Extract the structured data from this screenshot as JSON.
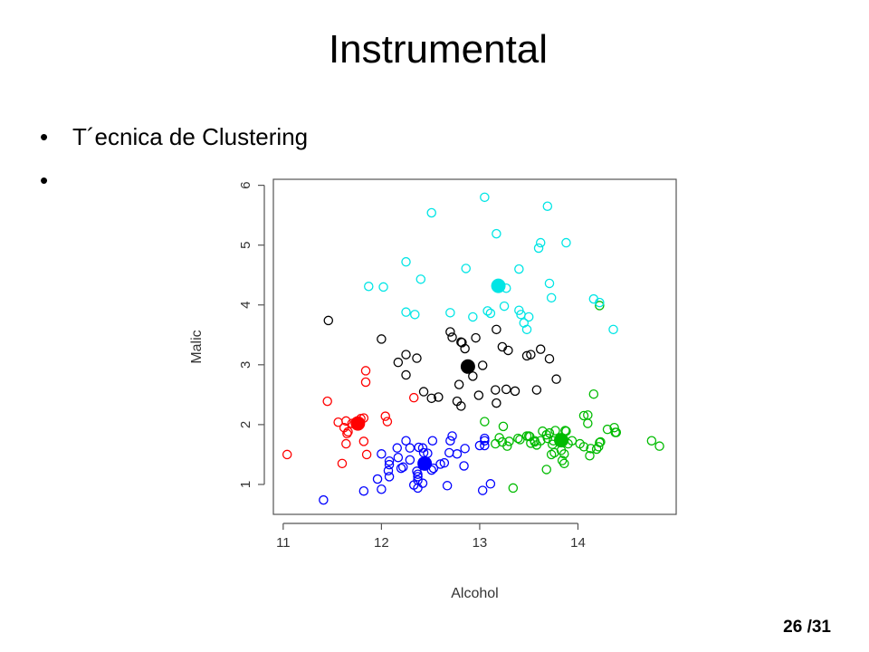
{
  "slide": {
    "title": "Instrumental",
    "bullets": [
      "T´ecnica de Clustering",
      ""
    ],
    "page": "26 /31"
  },
  "chart_data": {
    "type": "scatter",
    "title": "",
    "xlabel": "Alcohol",
    "ylabel": "Malic",
    "xlim": [
      10.9,
      15.0
    ],
    "ylim": [
      0.5,
      6.1
    ],
    "xticks": [
      11,
      12,
      13,
      14
    ],
    "yticks": [
      1,
      2,
      3,
      4,
      5,
      6
    ],
    "grid": false,
    "legend": "none",
    "series": [
      {
        "color": "#ff0000",
        "centroid": [
          11.76,
          2.02
        ],
        "points": [
          [
            11.04,
            1.5
          ],
          [
            11.45,
            2.39
          ],
          [
            11.56,
            2.04
          ],
          [
            11.6,
            1.35
          ],
          [
            11.62,
            1.95
          ],
          [
            11.64,
            1.68
          ],
          [
            11.64,
            2.06
          ],
          [
            11.65,
            1.85
          ],
          [
            11.7,
            2.02
          ],
          [
            11.82,
            2.11
          ],
          [
            11.82,
            1.72
          ],
          [
            11.84,
            2.9
          ],
          [
            11.84,
            2.71
          ],
          [
            11.85,
            1.5
          ],
          [
            12.04,
            2.14
          ],
          [
            12.06,
            2.05
          ],
          [
            12.33,
            2.45
          ],
          [
            11.79,
            2.1
          ],
          [
            11.66,
            1.88
          ]
        ]
      },
      {
        "color": "#0000ff",
        "centroid": [
          12.44,
          1.35
        ],
        "points": [
          [
            11.41,
            0.74
          ],
          [
            11.82,
            0.89
          ],
          [
            11.96,
            1.09
          ],
          [
            12.0,
            0.92
          ],
          [
            12.0,
            1.51
          ],
          [
            12.07,
            1.23
          ],
          [
            12.08,
            1.13
          ],
          [
            12.08,
            1.39
          ],
          [
            12.08,
            1.33
          ],
          [
            12.16,
            1.61
          ],
          [
            12.17,
            1.45
          ],
          [
            12.2,
            1.27
          ],
          [
            12.22,
            1.29
          ],
          [
            12.25,
            1.73
          ],
          [
            12.29,
            1.41
          ],
          [
            12.29,
            1.61
          ],
          [
            12.33,
            0.99
          ],
          [
            12.37,
            0.94
          ],
          [
            12.37,
            1.13
          ],
          [
            12.37,
            1.17
          ],
          [
            12.37,
            1.07
          ],
          [
            12.38,
            1.62
          ],
          [
            12.42,
            1.61
          ],
          [
            12.43,
            1.53
          ],
          [
            12.47,
            1.52
          ],
          [
            12.51,
            1.24
          ],
          [
            12.52,
            1.73
          ],
          [
            12.6,
            1.34
          ],
          [
            12.64,
            1.36
          ],
          [
            12.67,
            0.98
          ],
          [
            12.69,
            1.53
          ],
          [
            12.7,
            1.73
          ],
          [
            12.72,
            1.81
          ],
          [
            12.84,
            1.31
          ],
          [
            12.85,
            1.6
          ],
          [
            13.03,
            0.9
          ],
          [
            13.05,
            1.73
          ],
          [
            13.05,
            1.65
          ],
          [
            13.05,
            1.77
          ],
          [
            13.11,
            1.01
          ],
          [
            12.53,
            1.27
          ],
          [
            13.0,
            1.65
          ],
          [
            12.77,
            1.51
          ],
          [
            12.42,
            1.02
          ],
          [
            12.36,
            1.22
          ]
        ]
      },
      {
        "color": "#00bb00",
        "centroid": [
          13.83,
          1.74
        ],
        "points": [
          [
            13.05,
            2.05
          ],
          [
            13.16,
            1.68
          ],
          [
            13.2,
            1.78
          ],
          [
            13.23,
            1.71
          ],
          [
            13.28,
            1.64
          ],
          [
            13.3,
            1.72
          ],
          [
            13.34,
            0.94
          ],
          [
            13.39,
            1.77
          ],
          [
            13.41,
            1.75
          ],
          [
            13.48,
            1.81
          ],
          [
            13.5,
            1.81
          ],
          [
            13.51,
            1.8
          ],
          [
            13.56,
            1.73
          ],
          [
            13.58,
            1.66
          ],
          [
            13.62,
            1.73
          ],
          [
            13.64,
            1.89
          ],
          [
            13.68,
            1.83
          ],
          [
            13.68,
            1.25
          ],
          [
            13.71,
            1.86
          ],
          [
            13.73,
            1.5
          ],
          [
            13.74,
            1.67
          ],
          [
            13.75,
            1.73
          ],
          [
            13.76,
            1.53
          ],
          [
            13.77,
            1.9
          ],
          [
            13.82,
            1.75
          ],
          [
            13.83,
            1.57
          ],
          [
            13.84,
            1.4
          ],
          [
            13.86,
            1.35
          ],
          [
            13.86,
            1.51
          ],
          [
            13.87,
            1.9
          ],
          [
            13.88,
            1.89
          ],
          [
            13.9,
            1.68
          ],
          [
            13.94,
            1.73
          ],
          [
            14.02,
            1.68
          ],
          [
            14.06,
            1.63
          ],
          [
            14.06,
            2.15
          ],
          [
            14.1,
            2.16
          ],
          [
            14.1,
            2.02
          ],
          [
            14.12,
            1.48
          ],
          [
            14.13,
            1.6
          ],
          [
            14.16,
            2.51
          ],
          [
            14.19,
            1.59
          ],
          [
            14.21,
            1.63
          ],
          [
            14.22,
            1.7
          ],
          [
            14.22,
            3.99
          ],
          [
            14.23,
            1.71
          ],
          [
            14.3,
            1.92
          ],
          [
            14.37,
            1.95
          ],
          [
            14.38,
            1.87
          ],
          [
            14.39,
            1.87
          ],
          [
            14.83,
            1.64
          ],
          [
            14.75,
            1.73
          ],
          [
            13.24,
            1.97
          ],
          [
            13.52,
            1.69
          ],
          [
            13.56,
            1.71
          ],
          [
            13.69,
            1.77
          ]
        ]
      },
      {
        "color": "#000000",
        "centroid": [
          12.88,
          2.97
        ],
        "points": [
          [
            11.46,
            3.74
          ],
          [
            12.0,
            3.43
          ],
          [
            12.17,
            3.04
          ],
          [
            12.25,
            2.83
          ],
          [
            12.25,
            3.17
          ],
          [
            12.36,
            3.11
          ],
          [
            12.51,
            2.44
          ],
          [
            12.58,
            2.46
          ],
          [
            12.7,
            3.55
          ],
          [
            12.72,
            3.46
          ],
          [
            12.79,
            2.67
          ],
          [
            12.81,
            2.31
          ],
          [
            12.81,
            3.38
          ],
          [
            12.82,
            3.37
          ],
          [
            12.85,
            3.27
          ],
          [
            12.87,
            2.98
          ],
          [
            12.93,
            2.81
          ],
          [
            12.96,
            3.45
          ],
          [
            13.03,
            2.99
          ],
          [
            13.16,
            2.58
          ],
          [
            13.17,
            2.36
          ],
          [
            13.17,
            3.59
          ],
          [
            13.23,
            3.3
          ],
          [
            13.27,
            2.59
          ],
          [
            13.29,
            3.24
          ],
          [
            13.36,
            2.56
          ],
          [
            13.48,
            3.15
          ],
          [
            13.52,
            3.17
          ],
          [
            13.58,
            2.58
          ],
          [
            13.62,
            3.26
          ],
          [
            13.71,
            3.1
          ],
          [
            13.78,
            2.76
          ],
          [
            12.99,
            2.49
          ],
          [
            12.77,
            2.39
          ],
          [
            12.43,
            2.55
          ]
        ]
      },
      {
        "color": "#00e5e5",
        "centroid": [
          13.19,
          4.32
        ],
        "points": [
          [
            11.87,
            4.31
          ],
          [
            12.02,
            4.3
          ],
          [
            12.25,
            4.72
          ],
          [
            12.25,
            3.88
          ],
          [
            12.34,
            3.84
          ],
          [
            12.4,
            4.43
          ],
          [
            12.51,
            5.54
          ],
          [
            12.7,
            3.87
          ],
          [
            12.86,
            4.61
          ],
          [
            12.93,
            3.8
          ],
          [
            13.05,
            5.8
          ],
          [
            13.08,
            3.9
          ],
          [
            13.11,
            3.86
          ],
          [
            13.17,
            5.19
          ],
          [
            13.25,
            3.98
          ],
          [
            13.27,
            4.28
          ],
          [
            13.4,
            4.6
          ],
          [
            13.4,
            3.91
          ],
          [
            13.45,
            3.7
          ],
          [
            13.48,
            3.59
          ],
          [
            13.6,
            4.95
          ],
          [
            13.62,
            5.04
          ],
          [
            13.69,
            5.65
          ],
          [
            13.71,
            4.36
          ],
          [
            13.73,
            4.12
          ],
          [
            13.88,
            5.04
          ],
          [
            14.16,
            4.1
          ],
          [
            14.22,
            4.04
          ],
          [
            14.36,
            3.59
          ],
          [
            13.42,
            3.84
          ],
          [
            13.5,
            3.8
          ]
        ]
      }
    ]
  }
}
